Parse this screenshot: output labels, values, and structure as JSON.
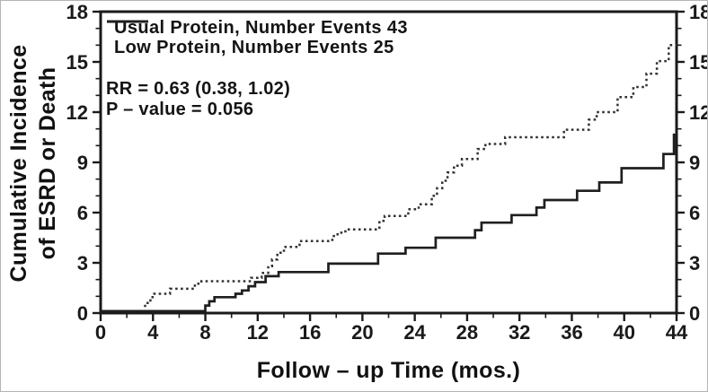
{
  "figure": {
    "background": "#ffffff",
    "frame_color": "#b5b5b5",
    "axis_color": "#1a1a1a",
    "text_color": "#111111"
  },
  "chart_data": {
    "type": "line",
    "subtype": "step-function-cumulative-incidence",
    "title": "",
    "xlabel": "Follow – up Time  (mos.)",
    "ylabel_lines": [
      "Cumulative Incidence",
      "of ESRD or Death"
    ],
    "xlim": [
      0,
      44
    ],
    "ylim": [
      0,
      18
    ],
    "xticks": [
      0,
      4,
      8,
      12,
      16,
      20,
      24,
      28,
      32,
      36,
      40,
      44
    ],
    "yticks": [
      0,
      3,
      6,
      9,
      12,
      15,
      18
    ],
    "x_minor_step": 2,
    "y_minor_step": 1,
    "grid": false,
    "legend_position": "top-left-inside",
    "right_axis_mirrors_left": true,
    "annotations": {
      "rr": "RR = 0.63  (0.38, 1.02)",
      "pvalue": "P – value = 0.056"
    },
    "series": [
      {
        "name": "usual-protein",
        "label": "Usual Protein, Number Events 43",
        "events": 43,
        "style": "dotted",
        "color": "#333333",
        "points": [
          [
            0,
            0.12
          ],
          [
            3.4,
            0.6
          ],
          [
            3.8,
            0.95
          ],
          [
            4.1,
            1.15
          ],
          [
            5.3,
            1.45
          ],
          [
            7.2,
            1.75
          ],
          [
            7.7,
            1.9
          ],
          [
            11.5,
            2.1
          ],
          [
            12.3,
            2.4
          ],
          [
            12.8,
            2.8
          ],
          [
            13.1,
            3.2
          ],
          [
            13.5,
            3.6
          ],
          [
            14.0,
            3.95
          ],
          [
            15.2,
            4.3
          ],
          [
            17.7,
            4.6
          ],
          [
            18.1,
            4.8
          ],
          [
            18.7,
            5.0
          ],
          [
            21.3,
            5.5
          ],
          [
            21.7,
            5.8
          ],
          [
            23.5,
            6.2
          ],
          [
            24.3,
            6.5
          ],
          [
            25.3,
            7.0
          ],
          [
            25.7,
            7.45
          ],
          [
            26.1,
            7.9
          ],
          [
            26.5,
            8.4
          ],
          [
            27.0,
            8.8
          ],
          [
            27.6,
            9.2
          ],
          [
            28.8,
            9.8
          ],
          [
            29.4,
            10.1
          ],
          [
            30.9,
            10.5
          ],
          [
            35.4,
            10.95
          ],
          [
            37.3,
            11.55
          ],
          [
            37.9,
            12.0
          ],
          [
            39.5,
            12.9
          ],
          [
            40.7,
            13.5
          ],
          [
            41.7,
            14.3
          ],
          [
            42.5,
            15.05
          ],
          [
            43.4,
            16.0
          ]
        ]
      },
      {
        "name": "low-protein",
        "label": "Low Protein, Number Events 25",
        "events": 25,
        "style": "solid",
        "color": "#1f1f1f",
        "points": [
          [
            0,
            0.12
          ],
          [
            8.0,
            0.45
          ],
          [
            8.3,
            0.7
          ],
          [
            8.7,
            0.95
          ],
          [
            10.3,
            1.15
          ],
          [
            10.8,
            1.35
          ],
          [
            11.3,
            1.6
          ],
          [
            11.8,
            1.85
          ],
          [
            12.6,
            2.2
          ],
          [
            13.6,
            2.45
          ],
          [
            17.4,
            2.95
          ],
          [
            21.2,
            3.55
          ],
          [
            23.3,
            3.9
          ],
          [
            25.6,
            4.5
          ],
          [
            28.6,
            4.95
          ],
          [
            29.1,
            5.4
          ],
          [
            31.4,
            5.85
          ],
          [
            33.3,
            6.3
          ],
          [
            33.9,
            6.75
          ],
          [
            36.4,
            7.3
          ],
          [
            38.1,
            7.8
          ],
          [
            39.8,
            8.65
          ],
          [
            43.0,
            9.5
          ],
          [
            43.8,
            10.65
          ]
        ]
      }
    ]
  }
}
